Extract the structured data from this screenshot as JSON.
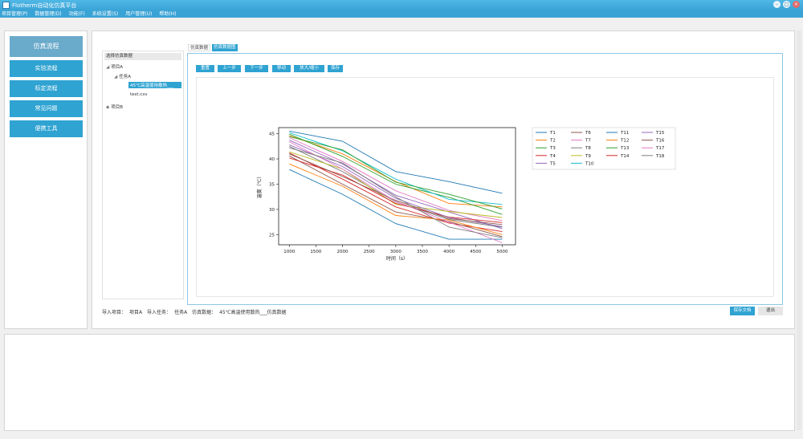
{
  "window": {
    "title": "Flotherm自动化仿真平台",
    "controls": [
      "–",
      "□",
      "×"
    ]
  },
  "menu": [
    "项目管理(P)",
    "数据管理(D)",
    "功能(F)",
    "系统设置(S)",
    "用户管理(U)",
    "帮助(H)"
  ],
  "nav": [
    "仿真流程",
    "实验流程",
    "标定流程",
    "常见问题",
    "便携工具"
  ],
  "tree": {
    "header": "选择仿真数据",
    "items": [
      {
        "label": "项目A",
        "level": 0,
        "prefix": "◢"
      },
      {
        "label": "任务A",
        "level": 1,
        "prefix": "◢"
      },
      {
        "label": "45℃高温使用散热___",
        "level": 2,
        "prefix": "",
        "selected": true
      },
      {
        "label": "test.csv",
        "level": 2,
        "prefix": ""
      },
      {
        "label": "项目B",
        "level": 0,
        "prefix": "◆"
      }
    ]
  },
  "tabs": [
    "仿真数据",
    "仿真数据图"
  ],
  "toolbar": [
    "重置",
    "上一步",
    "下一步",
    "移动",
    "放大/缩小",
    "保存"
  ],
  "status": {
    "project_label": "导入项目：",
    "project": "项目A",
    "task_label": "导入任务：",
    "task": "任务A",
    "data_label": "仿真数据：",
    "data": "45℃高温使用散热___仿真数据"
  },
  "buttons": {
    "save": "保存文档",
    "exit": "退出"
  },
  "chart_data": {
    "type": "line",
    "xlabel": "时间（s）",
    "ylabel": "温度（℃）",
    "xlim": [
      800,
      5250
    ],
    "ylim": [
      23,
      46.2
    ],
    "xticks": [
      1000,
      1500,
      2000,
      2500,
      3000,
      3500,
      4000,
      4500,
      5000
    ],
    "yticks": [
      25,
      30,
      35,
      40,
      45
    ],
    "x": [
      1000,
      2000,
      3000,
      4000,
      5000
    ],
    "legend": "right-outside, 4 columns",
    "grid": false,
    "series": [
      {
        "name": "T1",
        "color": "#1f77b4",
        "values": [
          45.5,
          43.5,
          37.5,
          35.5,
          33.2
        ]
      },
      {
        "name": "T2",
        "color": "#ff7f0e",
        "values": [
          44.6,
          41,
          35.5,
          31.2,
          30.5
        ]
      },
      {
        "name": "T3",
        "color": "#2ca02c",
        "values": [
          44.9,
          40.5,
          35,
          32.4,
          29
        ]
      },
      {
        "name": "T4",
        "color": "#d62728",
        "values": [
          41.2,
          36,
          30.5,
          27.3,
          25.6
        ]
      },
      {
        "name": "T5",
        "color": "#9467bd",
        "values": [
          43.7,
          39,
          32.8,
          29.5,
          26.2
        ]
      },
      {
        "name": "T6",
        "color": "#8c564b",
        "values": [
          40.6,
          35,
          29.5,
          27.6,
          24.6
        ]
      },
      {
        "name": "T7",
        "color": "#e377c2",
        "values": [
          44.2,
          39.5,
          33.7,
          29.8,
          27.8
        ]
      },
      {
        "name": "T8",
        "color": "#7f7f7f",
        "values": [
          42.5,
          37.5,
          31.5,
          28,
          26.5
        ]
      },
      {
        "name": "T9",
        "color": "#bcbd22",
        "values": [
          41.4,
          38,
          31,
          29.6,
          28.4
        ]
      },
      {
        "name": "T10",
        "color": "#17becf",
        "values": [
          45.2,
          41.6,
          36,
          32,
          31
        ]
      },
      {
        "name": "T11",
        "color": "#1f77b4",
        "values": [
          37.9,
          33,
          27.2,
          24.1,
          24.1
        ]
      },
      {
        "name": "T12",
        "color": "#ff7f0e",
        "values": [
          39,
          34.6,
          28.8,
          27.9,
          25
        ]
      },
      {
        "name": "T13",
        "color": "#2ca02c",
        "values": [
          44.4,
          41.8,
          35.4,
          33,
          30.1
        ]
      },
      {
        "name": "T14",
        "color": "#d62728",
        "values": [
          40.2,
          36.8,
          31.2,
          28.5,
          27.4
        ]
      },
      {
        "name": "T15",
        "color": "#9467bd",
        "values": [
          42.8,
          38.5,
          32.2,
          28.4,
          26.6
        ]
      },
      {
        "name": "T16",
        "color": "#8c564b",
        "values": [
          41,
          36.5,
          31.8,
          28.2,
          27
        ]
      },
      {
        "name": "T17",
        "color": "#e377c2",
        "values": [
          43.4,
          38,
          31.6,
          27.5,
          23.4
        ]
      },
      {
        "name": "T18",
        "color": "#7f7f7f",
        "values": [
          42.2,
          39.2,
          32.5,
          26.5,
          24.4
        ]
      }
    ]
  }
}
